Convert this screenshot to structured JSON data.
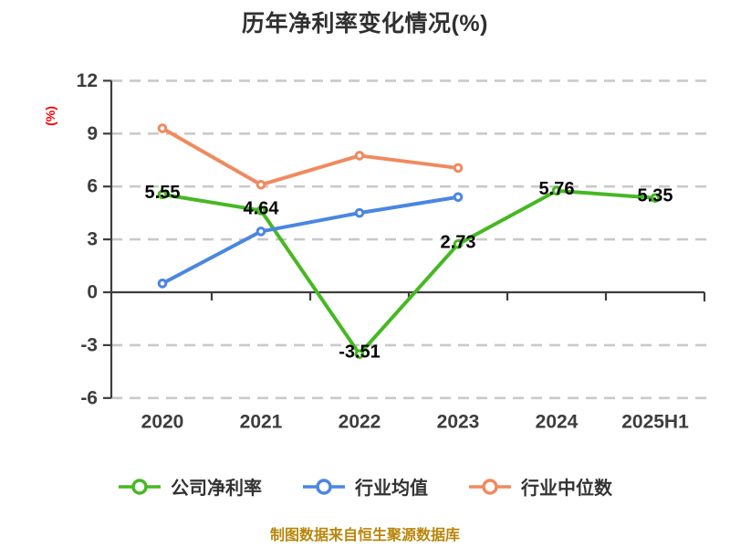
{
  "title": "历年净利率变化情况(%)",
  "caption": "制图数据来自恒生聚源数据库",
  "colors": {
    "title": "#303030",
    "axis": "#3d3d3d",
    "grid": "#c9c9c9",
    "tick_label": "#3d3d3d",
    "data_label": "#050505",
    "y_unit_label": "#ff0000",
    "caption": "#b8860b",
    "series_company": "#46b823",
    "series_industry_mean": "#4a86e2",
    "series_industry_median": "#f08a5e",
    "marker_fill": "#ffffff"
  },
  "chart_data": {
    "type": "line",
    "title": "历年净利率变化情况(%)",
    "categories": [
      "2020",
      "2021",
      "2022",
      "2023",
      "2024",
      "2025H1"
    ],
    "x_axis": {
      "position_at_value": 0
    },
    "y_axis": {
      "label": "(%)",
      "ticks": [
        12,
        9,
        6,
        3,
        0,
        -3,
        -6
      ],
      "min": -6,
      "max": 12
    },
    "grid": {
      "horizontal": true,
      "style": "dashed"
    },
    "legend_position": "bottom",
    "series": [
      {
        "name": "公司净利率",
        "color": "#46b823",
        "values": [
          5.55,
          4.64,
          -3.51,
          2.73,
          5.76,
          5.35
        ],
        "data_labels": [
          "5.55",
          "4.64",
          "-3.51",
          "2.73",
          "5.76",
          "5.35"
        ],
        "labels_visible": true
      },
      {
        "name": "行业均值",
        "color": "#4a86e2",
        "values": [
          0.5,
          3.45,
          4.5,
          5.4
        ],
        "data_labels": [],
        "labels_visible": false
      },
      {
        "name": "行业中位数",
        "color": "#f08a5e",
        "values": [
          9.3,
          6.1,
          7.75,
          7.05
        ],
        "data_labels": [],
        "labels_visible": false
      }
    ],
    "source_note": "制图数据来自恒生聚源数据库"
  }
}
